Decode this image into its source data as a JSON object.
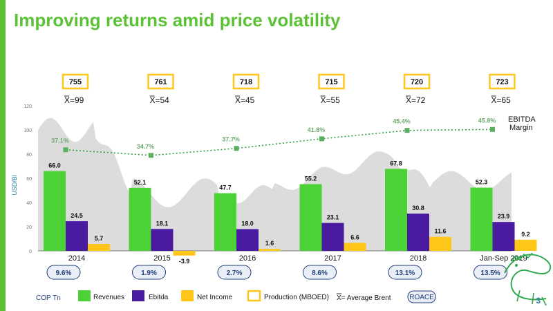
{
  "title": "Improving returns amid price volatility",
  "page_number": "3",
  "chart_data": {
    "type": "bar",
    "ylabel": "USD/Bl",
    "ylim": [
      0,
      120
    ],
    "yticks": [
      0,
      20,
      40,
      60,
      80,
      100,
      120
    ],
    "categories": [
      "2014",
      "2015",
      "2016",
      "2017",
      "2018",
      "Jan-Sep 2019"
    ],
    "series": [
      {
        "name": "Revenues",
        "color": "#4CD137",
        "values": [
          66.0,
          52.1,
          47.7,
          55.2,
          67.8,
          52.3
        ],
        "labels": [
          "66.0",
          "52.1",
          "47.7",
          "55.2",
          "67.8",
          "52.3"
        ]
      },
      {
        "name": "Ebitda",
        "color": "#4A1AA0",
        "values": [
          24.5,
          18.1,
          18.0,
          23.1,
          30.8,
          23.9
        ],
        "labels": [
          "24.5",
          "18.1",
          "18.0",
          "23.1",
          "30.8",
          "23.9"
        ]
      },
      {
        "name": "Net Income",
        "color": "#FFC61A",
        "values": [
          5.7,
          -3.9,
          1.6,
          6.6,
          11.6,
          9.2
        ],
        "labels": [
          "5.7",
          "-3.9",
          "1.6",
          "6.6",
          "11.6",
          "9.2"
        ]
      }
    ],
    "ebitda_margin": {
      "name": "EBITDA Margin",
      "name_lines": [
        "EBITDA",
        "Margin"
      ],
      "color": "#2E9E3E",
      "values": [
        37.1,
        34.7,
        37.7,
        41.8,
        45.4,
        45.8
      ],
      "labels": [
        "37.1%",
        "34.7%",
        "37.7%",
        "41.8%",
        "45.4%",
        "45.8%"
      ]
    },
    "production": {
      "name": "Production (MBOED)",
      "values": [
        "755",
        "761",
        "718",
        "715",
        "720",
        "723"
      ]
    },
    "average_brent": {
      "name": "X= Average Brent",
      "values": [
        "X=99",
        "X=54",
        "X=45",
        "X=55",
        "X=72",
        "X=65"
      ]
    },
    "roace": {
      "name": "ROACE",
      "values": [
        "9.6%",
        "1.9%",
        "2.7%",
        "8.6%",
        "13.1%",
        "13.5%"
      ]
    },
    "legend_prefix": "COP Tn",
    "background_area": "brent price history (grey)"
  },
  "colors": {
    "title": "#5BC236",
    "production_box_border": "#FFC61A",
    "roace_box_border": "#1F3F7A",
    "roace_box_fill": "#E9EEF7",
    "brent_area": "#DCDCDC"
  }
}
